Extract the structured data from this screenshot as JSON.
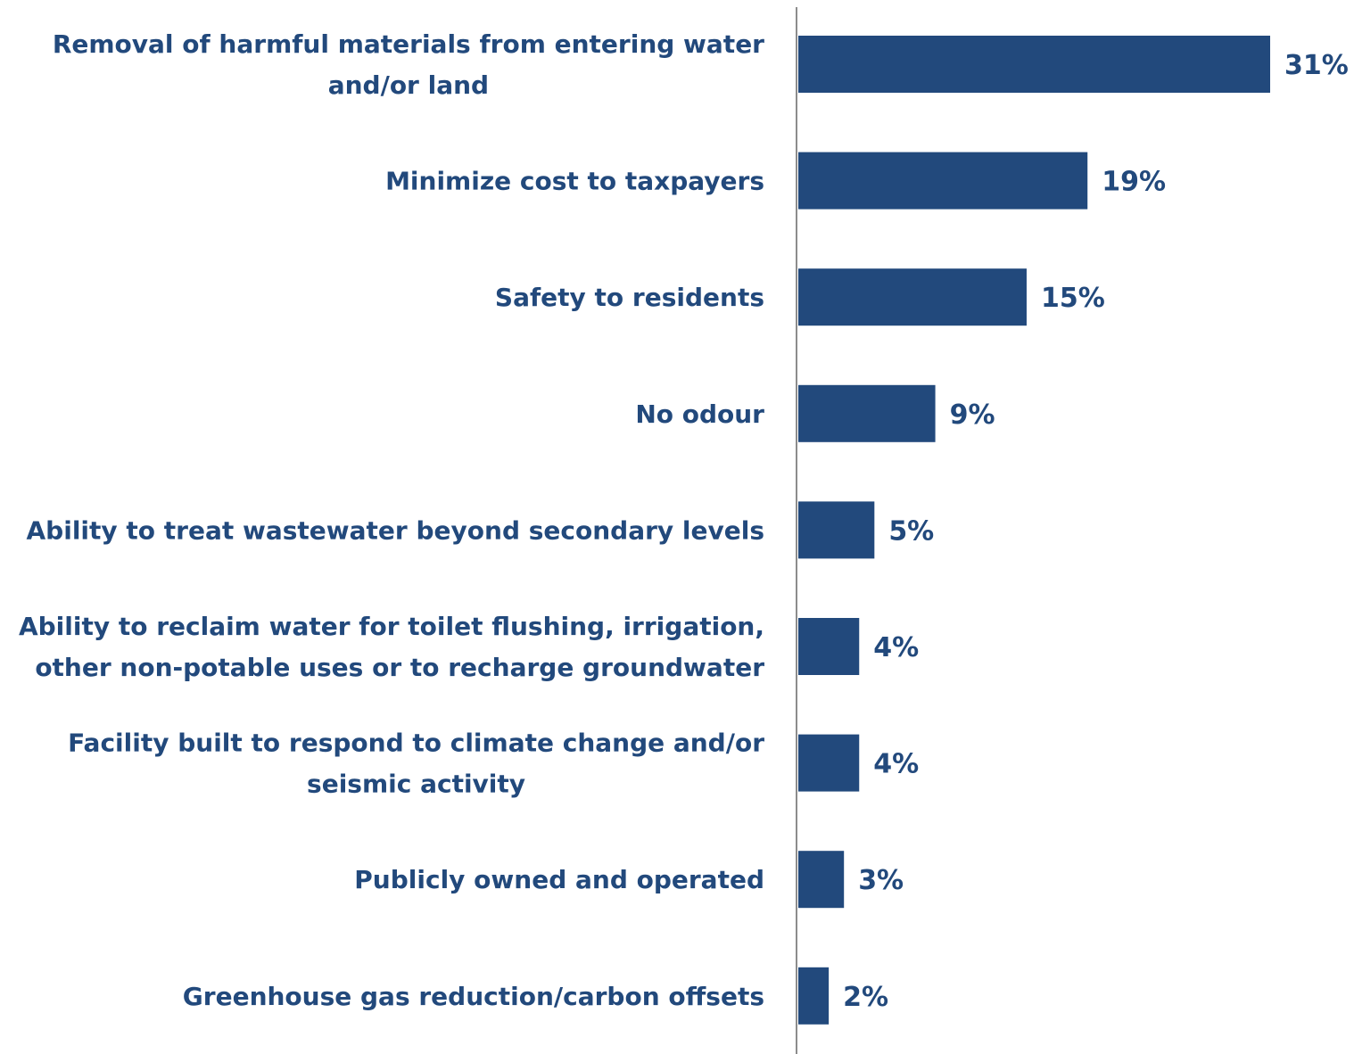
{
  "chart_data": {
    "type": "bar",
    "orientation": "horizontal",
    "categories": [
      [
        "Removal of harmful materials from entering water",
        "and/or land"
      ],
      [
        "Minimize cost to taxpayers"
      ],
      [
        "Safety to residents"
      ],
      [
        "No odour"
      ],
      [
        "Ability to treat wastewater beyond secondary levels"
      ],
      [
        "Ability to reclaim water for toilet flushing, irrigation,",
        "other non-potable uses or to recharge groundwater"
      ],
      [
        "Facility built to respond to climate change and/or",
        "seismic activity"
      ],
      [
        "Publicly owned and operated"
      ],
      [
        "Greenhouse gas reduction/carbon offsets"
      ]
    ],
    "values": [
      31,
      19,
      15,
      9,
      5,
      4,
      4,
      3,
      2
    ],
    "value_labels": [
      "31%",
      "19%",
      "15%",
      "9%",
      "5%",
      "4%",
      "4%",
      "3%",
      "2%"
    ],
    "xlim": [
      0,
      31
    ],
    "grid": false,
    "legend": "none",
    "colors": {
      "bar": "#22497c",
      "text": "#22497c",
      "axis": "#8c8c8c"
    }
  }
}
